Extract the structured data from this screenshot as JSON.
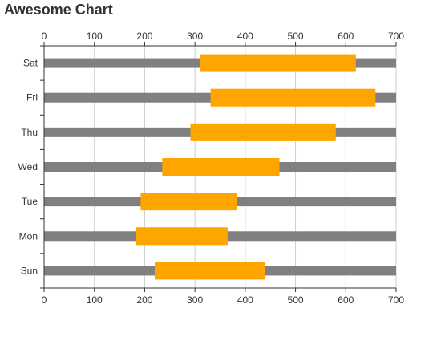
{
  "chart_data": {
    "type": "bar",
    "title": "Awesome Chart",
    "categories": [
      "Sun",
      "Mon",
      "Tue",
      "Wed",
      "Thu",
      "Fri",
      "Sat"
    ],
    "series": [
      {
        "values": [
          700,
          700,
          700,
          700,
          700,
          700,
          700
        ]
      },
      {
        "values": [
          [
            220,
            440
          ],
          [
            183,
            365
          ],
          [
            192,
            383
          ],
          [
            235,
            468
          ],
          [
            291,
            580
          ],
          [
            331,
            659
          ],
          [
            311,
            620
          ]
        ]
      }
    ],
    "xlim": [
      0,
      700
    ],
    "x_ticks": [
      "0",
      "100",
      "200",
      "300",
      "400",
      "500",
      "600",
      "700"
    ],
    "x_axis_positions": [
      "top",
      "bottom"
    ],
    "orientation": "horizontal",
    "grid": true,
    "colors": {
      "background_bar": "#808080",
      "range_bar": "#FFA500",
      "grid": "#cccccc",
      "axis": "#333333"
    }
  }
}
